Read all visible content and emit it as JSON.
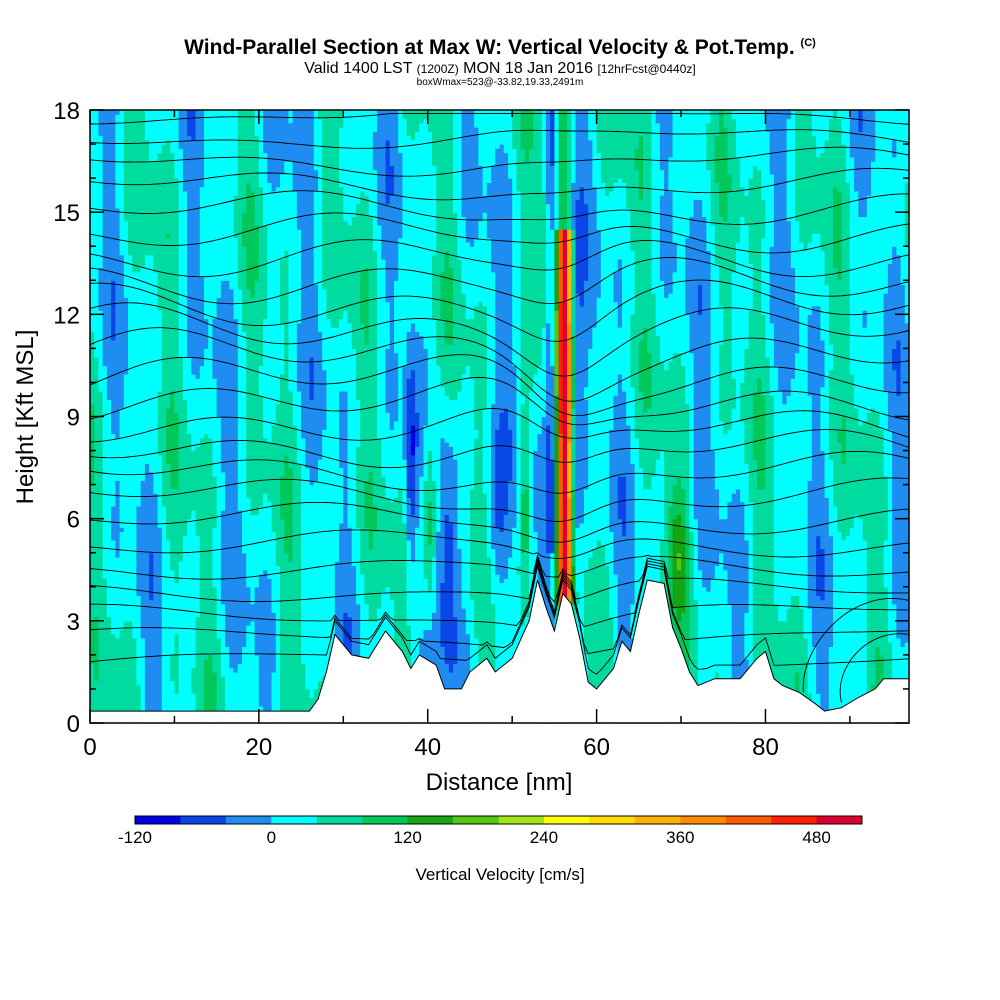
{
  "chart_data": {
    "type": "heatmap",
    "title": "Wind-Parallel Section at Max W: Vertical Velocity & Pot.Temp.",
    "title_mark": "(C)",
    "subtitle_main": "Valid 1400 LST",
    "subtitle_utc": "(1200Z)",
    "subtitle_date": "MON 18 Jan 2016",
    "subtitle_fcst": "[12hrFcst@0440z]",
    "subline": "boxWmax=523@-33.82,19.33,2491m",
    "xlabel": "Distance [nm]",
    "ylabel": "Height [Kft MSL]",
    "xlim": [
      0,
      97
    ],
    "ylim": [
      0,
      18
    ],
    "x_ticks": [
      "0",
      "20",
      "40",
      "60",
      "80"
    ],
    "y_ticks": [
      "0",
      "3",
      "6",
      "9",
      "12",
      "15",
      "18"
    ],
    "colorbar": {
      "label": "Vertical Velocity [cm/s]",
      "tick_labels": [
        "-120",
        "0",
        "120",
        "240",
        "360",
        "480"
      ],
      "colors": [
        "#0000e6",
        "#0a46e8",
        "#1e8cf0",
        "#00ffff",
        "#00dca0",
        "#00c85a",
        "#14a514",
        "#50c814",
        "#a0e614",
        "#ffff00",
        "#ffdc00",
        "#ffb400",
        "#ff8c00",
        "#ff5a00",
        "#ff1e00",
        "#dc0032"
      ]
    },
    "terrain": [
      {
        "x": 0,
        "h": 0.35
      },
      {
        "x": 26,
        "h": 0.35
      },
      {
        "x": 27,
        "h": 0.7
      },
      {
        "x": 28,
        "h": 1.5
      },
      {
        "x": 29,
        "h": 2.6
      },
      {
        "x": 31,
        "h": 2.0
      },
      {
        "x": 33,
        "h": 1.9
      },
      {
        "x": 35,
        "h": 2.7
      },
      {
        "x": 37,
        "h": 2.1
      },
      {
        "x": 38,
        "h": 1.6
      },
      {
        "x": 39,
        "h": 2.0
      },
      {
        "x": 41,
        "h": 1.7
      },
      {
        "x": 42,
        "h": 1.0
      },
      {
        "x": 44,
        "h": 1.0
      },
      {
        "x": 45,
        "h": 1.5
      },
      {
        "x": 47,
        "h": 1.9
      },
      {
        "x": 48,
        "h": 1.5
      },
      {
        "x": 50,
        "h": 1.9
      },
      {
        "x": 52,
        "h": 3.0
      },
      {
        "x": 53,
        "h": 4.2
      },
      {
        "x": 54,
        "h": 3.4
      },
      {
        "x": 55,
        "h": 2.7
      },
      {
        "x": 56,
        "h": 3.8
      },
      {
        "x": 57,
        "h": 3.5
      },
      {
        "x": 58,
        "h": 2.5
      },
      {
        "x": 59,
        "h": 1.2
      },
      {
        "x": 60,
        "h": 1.0
      },
      {
        "x": 62,
        "h": 1.6
      },
      {
        "x": 63,
        "h": 2.4
      },
      {
        "x": 64,
        "h": 2.1
      },
      {
        "x": 65,
        "h": 3.2
      },
      {
        "x": 66,
        "h": 4.2
      },
      {
        "x": 68,
        "h": 4.1
      },
      {
        "x": 69,
        "h": 2.8
      },
      {
        "x": 70,
        "h": 2.2
      },
      {
        "x": 71,
        "h": 1.5
      },
      {
        "x": 72,
        "h": 1.1
      },
      {
        "x": 74,
        "h": 1.3
      },
      {
        "x": 77,
        "h": 1.3
      },
      {
        "x": 79,
        "h": 1.9
      },
      {
        "x": 80,
        "h": 2.1
      },
      {
        "x": 81,
        "h": 1.3
      },
      {
        "x": 82,
        "h": 1.1
      },
      {
        "x": 84,
        "h": 0.9
      },
      {
        "x": 86,
        "h": 0.55
      },
      {
        "x": 87,
        "h": 0.35
      },
      {
        "x": 89,
        "h": 0.45
      },
      {
        "x": 91,
        "h": 0.75
      },
      {
        "x": 93,
        "h": 1.0
      },
      {
        "x": 94,
        "h": 1.3
      },
      {
        "x": 97,
        "h": 1.3
      }
    ],
    "updraft_core": {
      "x": 56,
      "w_max": 523
    }
  }
}
